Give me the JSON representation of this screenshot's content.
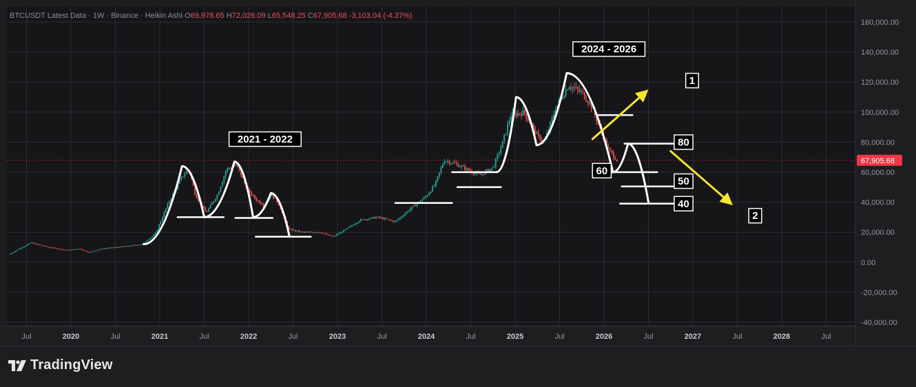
{
  "header": {
    "symbol": "BTCUSDT Latest Data · 1W · Binance · Heikin Ashi",
    "open_label": "O",
    "open": "69,978.65",
    "high_label": "H",
    "high": "72,026.09",
    "low_label": "L",
    "low": "65,548.25",
    "close_label": "C",
    "close": "67,905.68",
    "change": "-3,103.04 (-4.37%)"
  },
  "logo": {
    "text": "TradingView",
    "icon": "tradingview-logo-icon"
  },
  "colors": {
    "background": "#1e1e20",
    "plot_bg": "#161619",
    "grid": "#2a2c33",
    "up": "#26a69a",
    "down": "#ef5350",
    "price_tag": "#f23645",
    "annotation": "#ffffff",
    "arrow": "#f5e52e"
  },
  "chart_data": {
    "type": "candlestick",
    "title": "BTCUSDT Latest Data · 1W · Binance · Heikin Ashi",
    "y_axis": {
      "ticks": [
        160000,
        140000,
        120000,
        100000,
        80000,
        60000,
        40000,
        20000,
        0,
        -20000,
        -40000
      ],
      "tick_labels": [
        "160,000.00",
        "140,000.00",
        "120,000.00",
        "100,000.00",
        "80,000.00",
        "60,000.00",
        "40,000.00",
        "20,000.00",
        "0.00",
        "-20,000.00",
        "-40,000.00"
      ],
      "range": [
        -40000,
        160000
      ]
    },
    "x_axis": {
      "ticks": [
        2019.5,
        2020,
        2020.5,
        2021,
        2021.5,
        2022,
        2022.5,
        2023,
        2023.5,
        2024,
        2024.5,
        2025,
        2025.5,
        2026,
        2026.5,
        2027,
        2027.5,
        2028,
        2028.5
      ],
      "tick_labels": [
        "Jul",
        "2020",
        "Jul",
        "2021",
        "Jul",
        "2022",
        "Jul",
        "2023",
        "Jul",
        "2024",
        "Jul",
        "2025",
        "Jul",
        "2026",
        "Jul",
        "2027",
        "Jul",
        "2028",
        "Jul"
      ],
      "range": [
        2019.3,
        2028.8
      ]
    },
    "last_price": 67905.68,
    "last_price_label": "67,905.68",
    "price_path": [
      [
        2019.3,
        5000
      ],
      [
        2019.45,
        10000
      ],
      [
        2019.55,
        13000
      ],
      [
        2019.75,
        10000
      ],
      [
        2019.95,
        8000
      ],
      [
        2020.1,
        9000
      ],
      [
        2020.2,
        6500
      ],
      [
        2020.35,
        9000
      ],
      [
        2020.6,
        10500
      ],
      [
        2020.8,
        12000
      ],
      [
        2020.95,
        19000
      ],
      [
        2021.1,
        40000
      ],
      [
        2021.25,
        57000
      ],
      [
        2021.33,
        62000
      ],
      [
        2021.4,
        45000
      ],
      [
        2021.52,
        33000
      ],
      [
        2021.65,
        45000
      ],
      [
        2021.75,
        62000
      ],
      [
        2021.86,
        65000
      ],
      [
        2022.0,
        47000
      ],
      [
        2022.08,
        42000
      ],
      [
        2022.17,
        38000
      ],
      [
        2022.25,
        45000
      ],
      [
        2022.33,
        40000
      ],
      [
        2022.45,
        22000
      ],
      [
        2022.6,
        20000
      ],
      [
        2022.8,
        20000
      ],
      [
        2022.95,
        17000
      ],
      [
        2023.1,
        22000
      ],
      [
        2023.25,
        28000
      ],
      [
        2023.45,
        30000
      ],
      [
        2023.65,
        27000
      ],
      [
        2023.85,
        37000
      ],
      [
        2024.0,
        44000
      ],
      [
        2024.1,
        52000
      ],
      [
        2024.2,
        68000
      ],
      [
        2024.35,
        65000
      ],
      [
        2024.45,
        62000
      ],
      [
        2024.6,
        58000
      ],
      [
        2024.75,
        63000
      ],
      [
        2024.85,
        78000
      ],
      [
        2024.95,
        98000
      ],
      [
        2025.1,
        100000
      ],
      [
        2025.25,
        84000
      ],
      [
        2025.33,
        80000
      ],
      [
        2025.45,
        102000
      ],
      [
        2025.6,
        118000
      ],
      [
        2025.75,
        113000
      ],
      [
        2025.85,
        105000
      ],
      [
        2025.95,
        90000
      ],
      [
        2026.05,
        75000
      ],
      [
        2026.15,
        68000
      ]
    ],
    "annotations": {
      "labels": [
        "2021 - 2022",
        "2024 - 2026",
        "60",
        "80",
        "50",
        "40",
        "1",
        "2"
      ],
      "drawing_levels": [
        30000,
        29500,
        17000,
        39500,
        50000,
        60000,
        98000,
        79000,
        60000,
        50500,
        39000
      ],
      "hand_drawn_curves": [
        {
          "name": "2021-2022 cycle",
          "points": [
            [
              2020.82,
              12000
            ],
            [
              2021.25,
              64000
            ],
            [
              2021.5,
              30000
            ],
            [
              2021.84,
              67000
            ],
            [
              2022.05,
              30000
            ],
            [
              2022.25,
              46000
            ],
            [
              2022.46,
              17000
            ]
          ]
        },
        {
          "name": "2024-2026 cycle",
          "points": [
            [
              2024.79,
              60000
            ],
            [
              2025.01,
              110000
            ],
            [
              2025.24,
              78000
            ],
            [
              2025.58,
              126000
            ],
            [
              2026.1,
              60000
            ],
            [
              2026.27,
              79000
            ],
            [
              2026.5,
              40000
            ]
          ]
        }
      ],
      "arrows": [
        {
          "name": "bull-arrow",
          "from": [
            2025.87,
            82000
          ],
          "to": [
            2026.5,
            115000
          ],
          "label": "1"
        },
        {
          "name": "bear-arrow",
          "from": [
            2026.75,
            74000
          ],
          "to": [
            2027.45,
            38000
          ],
          "label": "2"
        }
      ]
    }
  }
}
